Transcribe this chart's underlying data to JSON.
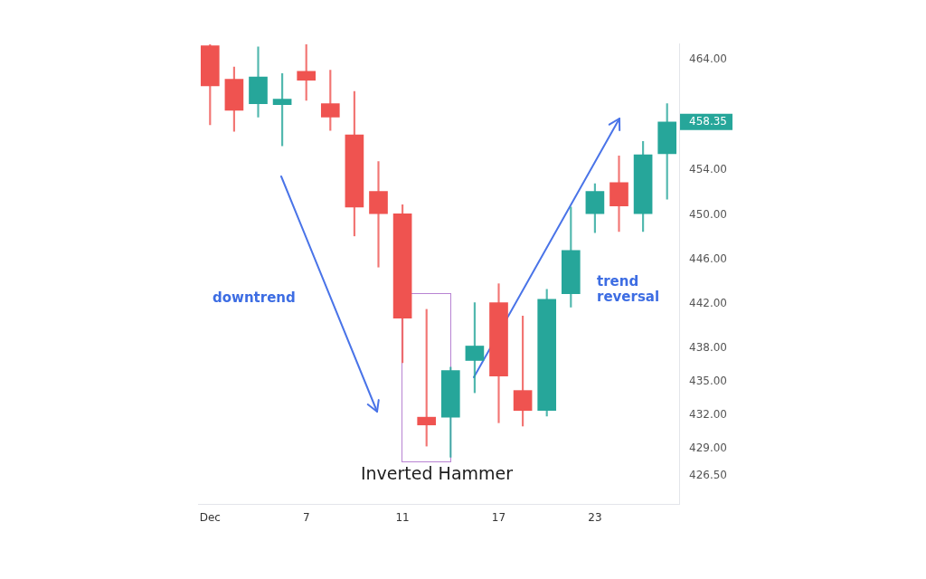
{
  "chart_data": {
    "type": "candlestick",
    "categories": [
      "Dec",
      null,
      null,
      null,
      "7",
      null,
      null,
      null,
      "11",
      null,
      null,
      null,
      "17",
      null,
      null,
      null,
      "23",
      null,
      null,
      null
    ],
    "ohlc": [
      [
        465.2,
        465.3,
        458.1,
        461.6
      ],
      [
        462.2,
        463.3,
        457.5,
        459.4
      ],
      [
        460.0,
        465.1,
        458.8,
        462.4
      ],
      [
        459.9,
        462.7,
        456.2,
        460.4
      ],
      [
        462.9,
        465.3,
        460.3,
        462.1
      ],
      [
        460.0,
        463.0,
        457.6,
        458.8
      ],
      [
        457.2,
        461.1,
        448.1,
        450.7
      ],
      [
        452.1,
        454.8,
        445.3,
        450.1
      ],
      [
        450.1,
        450.9,
        436.7,
        440.7
      ],
      [
        431.8,
        441.5,
        429.2,
        431.1
      ],
      [
        431.8,
        436.3,
        428.2,
        436.0
      ],
      [
        436.9,
        442.1,
        434.0,
        438.2
      ],
      [
        442.1,
        443.8,
        431.3,
        435.5
      ],
      [
        434.2,
        440.9,
        431.0,
        432.4
      ],
      [
        432.4,
        443.3,
        431.9,
        442.4
      ],
      [
        442.9,
        450.7,
        441.7,
        446.8
      ],
      [
        450.1,
        452.8,
        448.4,
        452.1
      ],
      [
        452.9,
        455.3,
        448.5,
        450.8
      ],
      [
        450.1,
        456.6,
        448.5,
        455.4
      ],
      [
        455.5,
        460.0,
        451.4,
        458.35
      ]
    ],
    "colors": [
      "#ef5350",
      "#ef5350",
      "#26a69a",
      "#26a69a",
      "#ef5350",
      "#ef5350",
      "#ef5350",
      "#ef5350",
      "#ef5350",
      "#ef5350",
      "#26a69a",
      "#26a69a",
      "#ef5350",
      "#ef5350",
      "#26a69a",
      "#26a69a",
      "#26a69a",
      "#ef5350",
      "#26a69a",
      "#26a69a"
    ],
    "ylim": [
      424,
      465.4
    ],
    "yticks": [
      {
        "value": 464,
        "label": "464.00"
      },
      {
        "value": 458.35,
        "label": "458.35"
      },
      {
        "value": 454,
        "label": "454.00"
      },
      {
        "value": 450,
        "label": "450.00"
      },
      {
        "value": 446,
        "label": "446.00"
      },
      {
        "value": 442,
        "label": "442.00"
      },
      {
        "value": 438,
        "label": "438.00"
      },
      {
        "value": 435,
        "label": "435.00"
      },
      {
        "value": 432,
        "label": "432.00"
      },
      {
        "value": 429,
        "label": "429.00"
      },
      {
        "value": 426.5,
        "label": "426.50"
      }
    ],
    "annotations": [
      "downtrend",
      "trend reversal",
      "Inverted Hammer"
    ]
  }
}
